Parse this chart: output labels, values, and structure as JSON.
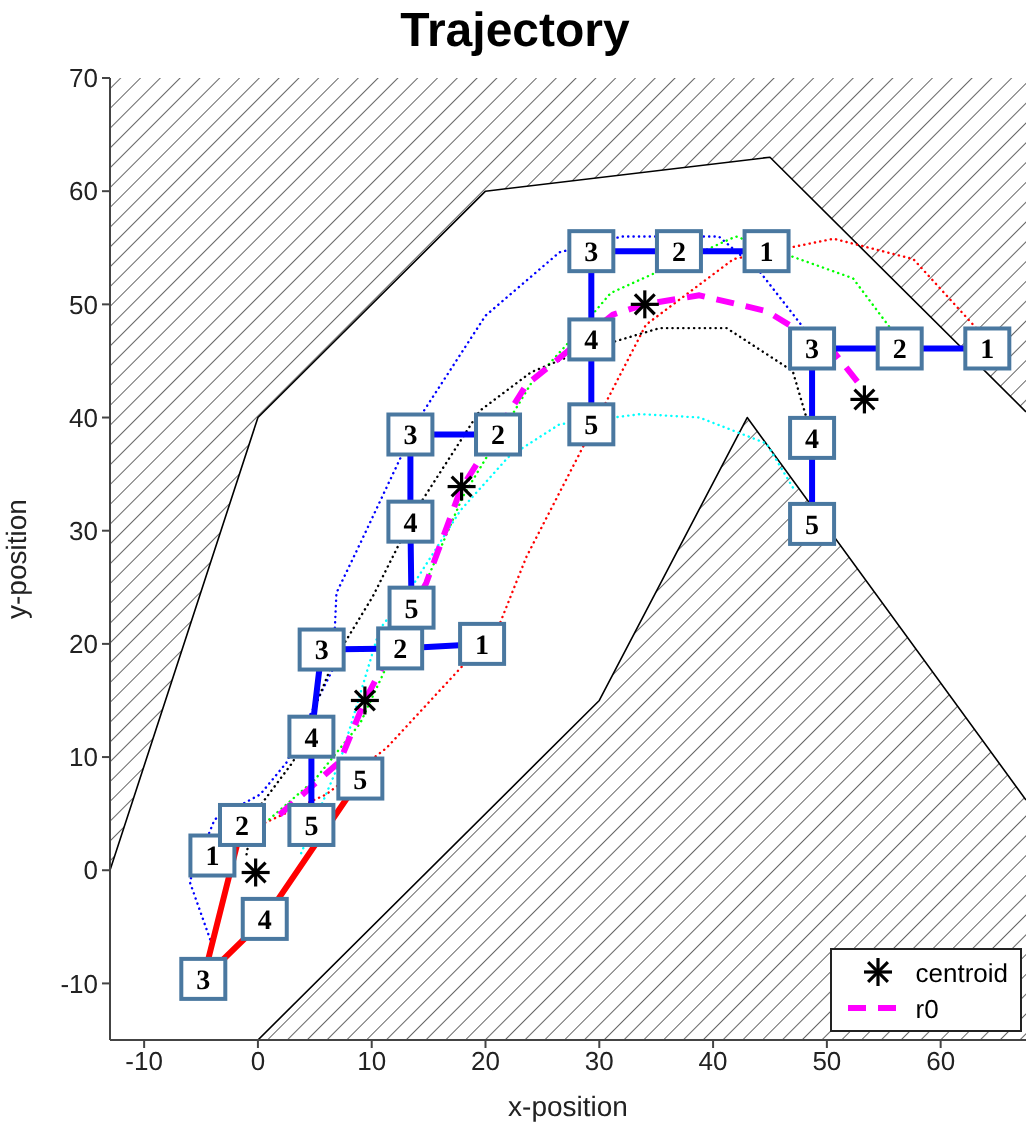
{
  "chart_data": {
    "type": "line",
    "title": "Trajectory",
    "xlabel": "x-position",
    "ylabel": "y-position",
    "xlim": [
      -13,
      67.5
    ],
    "xticks": [
      -10,
      0,
      10,
      20,
      30,
      40,
      50,
      60
    ],
    "ylim": [
      -15,
      70
    ],
    "yticks": [
      -10,
      0,
      10,
      20,
      30,
      40,
      50,
      60,
      70
    ],
    "grid": false,
    "legend": "bottom right",
    "series": [
      {
        "color": "#000000",
        "line_style": "solid",
        "marker": "none",
        "x": [
          -13,
          0,
          20,
          45,
          67.5
        ],
        "values": [
          0,
          40,
          60,
          63,
          40.5
        ],
        "lower": [
          0,
          40,
          60,
          63,
          40.5
        ],
        "upper": [
          70,
          70,
          70,
          70,
          70
        ]
      },
      {
        "color": "#000000",
        "line_style": "solid",
        "marker": "none",
        "x": [
          0,
          30,
          43,
          67.5
        ],
        "values": [
          -15,
          15,
          40,
          6.2
        ],
        "lower": [
          -15,
          -15,
          -15,
          -15
        ],
        "upper": [
          -15,
          15,
          40,
          6.2
        ]
      },
      {
        "color": "#0000ff",
        "line_style": "dotted",
        "marker": "none",
        "x": [
          -4.2,
          -6,
          -3.8,
          0.2,
          2.5,
          6.6,
          6.9,
          9,
          14.2,
          20,
          26.5,
          32,
          40.5,
          44.1,
          48.2
        ],
        "values": [
          -6.1,
          -1,
          4.5,
          6.7,
          9.5,
          17.8,
          24.5,
          28.9,
          40,
          49,
          54.6,
          56,
          56,
          52.9,
          47.6
        ]
      },
      {
        "color": "#ff0000",
        "line_style": "dotted",
        "marker": "none",
        "x": [
          0.2,
          6,
          11.3,
          18.3,
          21.3,
          23.6,
          34.1,
          41.8,
          50.6,
          57.6,
          63.4
        ],
        "values": [
          4,
          6.7,
          10.8,
          18.4,
          21.9,
          27.7,
          48.2,
          54,
          55.8,
          54,
          47.6
        ]
      },
      {
        "color": "#00ff00",
        "line_style": "dotted",
        "marker": "none",
        "x": [
          1,
          5,
          9,
          15,
          18,
          24,
          27.1,
          31,
          42,
          52.3,
          55.8
        ],
        "values": [
          4.5,
          8,
          13,
          26,
          33,
          43,
          46.4,
          51,
          56,
          52.3,
          47.6
        ]
      },
      {
        "color": "#000000",
        "line_style": "dotted",
        "marker": "none",
        "x": [
          -1,
          -0.4,
          3.1,
          6.6,
          10.1,
          14,
          19.5,
          24,
          28.3,
          35.3,
          41.2,
          47,
          48.2
        ],
        "values": [
          1.4,
          4.9,
          9.6,
          18.4,
          24.2,
          32,
          40.6,
          44,
          45.8,
          47.9,
          47.9,
          44.1,
          40
        ]
      },
      {
        "color": "#00ffff",
        "line_style": "dotted",
        "marker": "none",
        "x": [
          3.8,
          7.2,
          10.7,
          13.5,
          17.8,
          22,
          26.5,
          33.6,
          38.8,
          44.7,
          47.2
        ],
        "values": [
          1.5,
          9.6,
          21.3,
          25,
          31.8,
          36.5,
          39.4,
          40.3,
          40,
          37.7,
          33.5
        ]
      },
      {
        "type": "scatter",
        "name": "centroid",
        "color": "#000000",
        "marker": "cross",
        "x": [
          -0.2,
          9.4,
          17.9,
          34,
          53.3
        ],
        "values": [
          -0.2,
          15,
          33.9,
          50,
          41.6
        ]
      },
      {
        "name": "r0",
        "color": "#ff00ff",
        "line_style": "dashed",
        "marker": "none",
        "x": [
          1.9,
          7.2,
          9.4,
          14.8,
          17.8,
          23.6,
          31.2,
          34,
          38.8,
          44.7,
          50.6,
          52.9
        ],
        "values": [
          4.9,
          9.6,
          15,
          25.4,
          33.6,
          42.9,
          49.1,
          50,
          50.8,
          49.4,
          45.8,
          42.9
        ]
      },
      {
        "color": "#ff0000",
        "line_style": "solid",
        "marker": "square",
        "colors": [
          "#4a78a0",
          "#4a78a0",
          "#4a78a0",
          "#4a78a0",
          "#4a78a0"
        ],
        "x": [
          -4,
          -1.4,
          -4.8,
          0.6,
          9
        ],
        "values": [
          1.3,
          4,
          -9.6,
          -4.3,
          8.1
        ]
      },
      {
        "color": "#0000ff",
        "line_style": "solid",
        "marker": "square",
        "colors": [
          "#4a78a0",
          "#4a78a0",
          "#4a78a0",
          "#4a78a0",
          "#4a78a0"
        ],
        "x": [
          19.7,
          12.5,
          5.6,
          4.7,
          4.7
        ],
        "values": [
          20,
          19.6,
          19.5,
          11.8,
          4
        ]
      },
      {
        "color": "#0000ff",
        "line_style": "solid",
        "marker": "square",
        "colors": [
          "#4a78a0",
          "#4a78a0",
          "#4a78a0",
          "#4a78a0"
        ],
        "x": [
          21.1,
          13.4,
          13.4,
          13.5
        ],
        "values": [
          38.5,
          38.5,
          30.8,
          23.2
        ]
      },
      {
        "color": "#0000ff",
        "line_style": "solid",
        "marker": "square",
        "colors": [
          "#4a78a0",
          "#4a78a0",
          "#4a78a0",
          "#4a78a0",
          "#4a78a0"
        ],
        "x": [
          44.7,
          37,
          29.3,
          29.3,
          29.3
        ],
        "values": [
          54.7,
          54.7,
          54.7,
          46.9,
          39.4
        ]
      },
      {
        "color": "#0000ff",
        "line_style": "solid",
        "marker": "square",
        "colors": [
          "#4a78a0",
          "#4a78a0",
          "#4a78a0",
          "#4a78a0",
          "#4a78a0"
        ],
        "x": [
          64.1,
          56.4,
          48.7,
          48.7,
          48.7
        ],
        "values": [
          46.1,
          46.1,
          46.1,
          38.2,
          30.6
        ]
      }
    ],
    "annotations": [
      {
        "text": "1",
        "x": -4,
        "y": 1.3
      },
      {
        "text": "2",
        "x": -1.4,
        "y": 4
      },
      {
        "text": "3",
        "x": -4.8,
        "y": -9.6
      },
      {
        "text": "4",
        "x": 0.6,
        "y": -4.3
      },
      {
        "text": "5",
        "x": 9,
        "y": 8.1
      },
      {
        "text": "1",
        "x": 19.7,
        "y": 20
      },
      {
        "text": "2",
        "x": 12.5,
        "y": 19.6
      },
      {
        "text": "3",
        "x": 5.6,
        "y": 19.5
      },
      {
        "text": "4",
        "x": 4.7,
        "y": 11.8
      },
      {
        "text": "5",
        "x": 4.7,
        "y": 4
      },
      {
        "text": "2",
        "x": 21.1,
        "y": 38.5
      },
      {
        "text": "3",
        "x": 13.4,
        "y": 38.5
      },
      {
        "text": "4",
        "x": 13.4,
        "y": 30.8
      },
      {
        "text": "5",
        "x": 13.5,
        "y": 23.2
      },
      {
        "text": "1",
        "x": 44.7,
        "y": 54.7
      },
      {
        "text": "2",
        "x": 37,
        "y": 54.7
      },
      {
        "text": "3",
        "x": 29.3,
        "y": 54.7
      },
      {
        "text": "4",
        "x": 29.3,
        "y": 46.9
      },
      {
        "text": "5",
        "x": 29.3,
        "y": 39.4
      },
      {
        "text": "1",
        "x": 64.1,
        "y": 46.1
      },
      {
        "text": "2",
        "x": 56.4,
        "y": 46.1
      },
      {
        "text": "3",
        "x": 48.7,
        "y": 46.1
      },
      {
        "text": "4",
        "x": 48.7,
        "y": 38.2
      },
      {
        "text": "5",
        "x": 48.7,
        "y": 30.6
      }
    ]
  }
}
